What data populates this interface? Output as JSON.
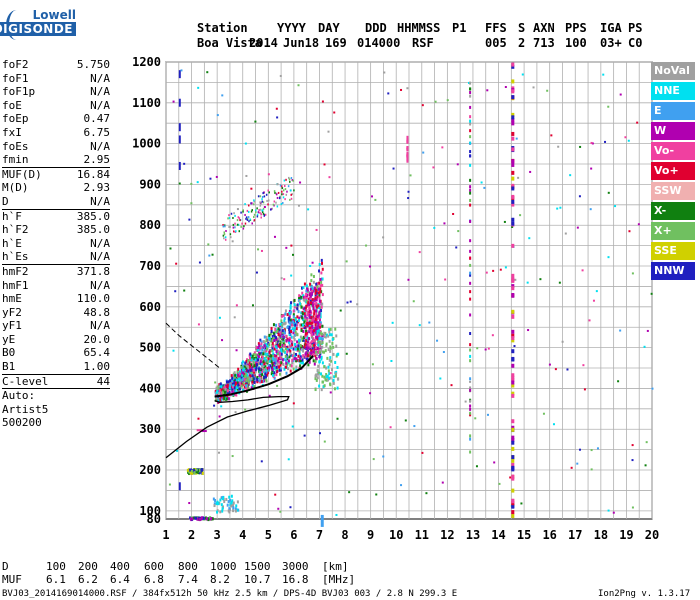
{
  "logo": {
    "line1": "Lowell",
    "line2": "DIGISONDE"
  },
  "header": {
    "row1": [
      "Station",
      "YYYY",
      "DAY",
      "DDD",
      "HHMMSS",
      "P1",
      "FFS",
      "S",
      "AXN",
      "PPS",
      "IGA",
      "PS"
    ],
    "row2": [
      "Boa Vista",
      "2014",
      "Jun18",
      "169",
      "014000",
      "RSF",
      "005",
      "2",
      "713",
      "100",
      "03+",
      "C0"
    ]
  },
  "params": [
    {
      "name": "foF2",
      "value": "5.750"
    },
    {
      "name": "foF1",
      "value": "N/A"
    },
    {
      "name": "foF1p",
      "value": "N/A"
    },
    {
      "name": "foE",
      "value": "N/A"
    },
    {
      "name": "foEp",
      "value": "0.47"
    },
    {
      "name": "fxI",
      "value": "6.75"
    },
    {
      "name": "foEs",
      "value": "N/A"
    },
    {
      "name": "fmin",
      "value": "2.95"
    },
    {
      "sep": true
    },
    {
      "name": "MUF(D)",
      "value": "16.84"
    },
    {
      "name": "M(D)",
      "value": "2.93"
    },
    {
      "name": "D",
      "value": "N/A"
    },
    {
      "sep": true
    },
    {
      "name": "h`F",
      "value": "385.0"
    },
    {
      "name": "h`F2",
      "value": "385.0"
    },
    {
      "name": "h`E",
      "value": "N/A"
    },
    {
      "name": "h`Es",
      "value": "N/A"
    },
    {
      "sep": true
    },
    {
      "name": "hmF2",
      "value": "371.8"
    },
    {
      "name": "hmF1",
      "value": "N/A"
    },
    {
      "name": "hmE",
      "value": "110.0"
    },
    {
      "name": "yF2",
      "value": "48.8"
    },
    {
      "name": "yF1",
      "value": "N/A"
    },
    {
      "name": "yE",
      "value": "20.0"
    },
    {
      "name": "B0",
      "value": "65.4"
    },
    {
      "name": "B1",
      "value": "1.00"
    },
    {
      "sep": true
    },
    {
      "name": "C-level",
      "value": "44"
    },
    {
      "sep": true
    },
    {
      "name": "Auto:",
      "value": ""
    },
    {
      "name": "Artist5",
      "value": ""
    },
    {
      "name": "500200",
      "value": ""
    }
  ],
  "legend": [
    {
      "label": "NoVal",
      "color": "#a0a0a0"
    },
    {
      "label": "NNE",
      "color": "#00e0f0"
    },
    {
      "label": "E",
      "color": "#40a0f0"
    },
    {
      "label": "W",
      "color": "#b000b0"
    },
    {
      "label": "Vo-",
      "color": "#f040a0"
    },
    {
      "label": "Vo+",
      "color": "#e00030"
    },
    {
      "label": "SSW",
      "color": "#f0b0b0"
    },
    {
      "label": "X-",
      "color": "#108010"
    },
    {
      "label": "X+",
      "color": "#70c060"
    },
    {
      "label": "SSE",
      "color": "#d0d000"
    },
    {
      "label": "NNW",
      "color": "#2020c0"
    }
  ],
  "bottom": {
    "d_label": "D",
    "d_values": [
      "100",
      "200",
      "400",
      "600",
      "800",
      "1000",
      "1500",
      "3000",
      "[km]"
    ],
    "muf_label": "MUF",
    "muf_values": [
      "6.1",
      "6.2",
      "6.4",
      "6.8",
      "7.4",
      "8.2",
      "10.7",
      "16.8",
      "[MHz]"
    ],
    "footer_left": "BVJ03_2014169014000.RSF / 384fx512h 50 kHz 2.5 km / DPS-4D BVJ03 003 / 2.8 N 299.3 E",
    "footer_right": "Ion2Png v. 1.3.17"
  },
  "chart_data": {
    "type": "scatter",
    "xlim": [
      1,
      20
    ],
    "ylim": [
      80,
      1200
    ],
    "x_ticks": [
      1,
      2,
      3,
      4,
      5,
      6,
      7,
      8,
      9,
      10,
      11,
      12,
      13,
      14,
      15,
      16,
      17,
      18,
      19,
      20
    ],
    "y_ticks": [
      80,
      100,
      200,
      300,
      400,
      500,
      600,
      700,
      800,
      900,
      1000,
      1100,
      1200
    ],
    "grid": true,
    "xlabel": "",
    "ylabel": ""
  }
}
